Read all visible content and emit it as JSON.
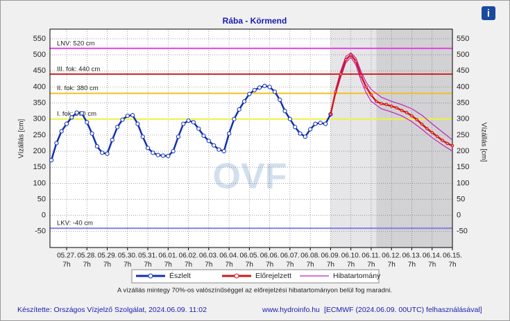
{
  "chart_data": {
    "type": "hydrograph",
    "title": "Rába - Körmend",
    "y_label": "Vízállás [cm]",
    "y2_label": "Vízállás [cm]",
    "watermark": "OVF",
    "info_icon": "i",
    "xlim": [
      -0.82,
      19
    ],
    "ylim": [
      -100,
      580
    ],
    "yticks": [
      -50,
      0,
      50,
      100,
      150,
      200,
      250,
      300,
      350,
      400,
      450,
      500,
      550
    ],
    "xticks": [
      {
        "value": 0,
        "label": "05.27.",
        "hour": "7h"
      },
      {
        "value": 1,
        "label": "05.28.",
        "hour": "7h"
      },
      {
        "value": 2,
        "label": "05.29.",
        "hour": "7h"
      },
      {
        "value": 3,
        "label": "05.30.",
        "hour": "7h"
      },
      {
        "value": 4,
        "label": "05.31.",
        "hour": "7h"
      },
      {
        "value": 5,
        "label": "06.01.",
        "hour": "7h"
      },
      {
        "value": 6,
        "label": "06.02.",
        "hour": "7h"
      },
      {
        "value": 7,
        "label": "06.03.",
        "hour": "7h"
      },
      {
        "value": 8,
        "label": "06.04.",
        "hour": "7h"
      },
      {
        "value": 9,
        "label": "06.05.",
        "hour": "7h"
      },
      {
        "value": 10,
        "label": "06.06.",
        "hour": "7h"
      },
      {
        "value": 11,
        "label": "06.07.",
        "hour": "7h"
      },
      {
        "value": 12,
        "label": "06.08.",
        "hour": "7h"
      },
      {
        "value": 13,
        "label": "06.09.",
        "hour": "7h"
      },
      {
        "value": 14,
        "label": "06.10.",
        "hour": "7h"
      },
      {
        "value": 15,
        "label": "06.11.",
        "hour": "7h"
      },
      {
        "value": 16,
        "label": "06.12.",
        "hour": "7h"
      },
      {
        "value": 17,
        "label": "06.13.",
        "hour": "7h"
      },
      {
        "value": 18,
        "label": "06.14.",
        "hour": "7h"
      },
      {
        "value": 19,
        "label": "06.15.",
        "hour": "7h"
      }
    ],
    "grid": true,
    "shaded_regions": [
      {
        "from": 13,
        "to": 15.25,
        "color": "#e6e6e8"
      },
      {
        "from": 15.25,
        "to": 19,
        "color": "#d2d2d4"
      }
    ],
    "thresholds": [
      {
        "label": "LNV: 520 cm",
        "value": 520,
        "color": "#e040e0"
      },
      {
        "label": "III. fok: 440 cm",
        "value": 440,
        "color": "#d02020"
      },
      {
        "label": "II. fok: 380 cm",
        "value": 380,
        "color": "#f0c020"
      },
      {
        "label": "I. fok: 300 cm",
        "value": 300,
        "color": "#f0f040"
      },
      {
        "label": "LKV: -40 cm",
        "value": -40,
        "color": "#8080e0"
      }
    ],
    "series": [
      {
        "name": "Észlelt",
        "color": "#1030b0",
        "x": [
          -0.75,
          -0.5,
          -0.25,
          0,
          0.25,
          0.5,
          0.75,
          1,
          1.25,
          1.5,
          1.75,
          2,
          2.25,
          2.5,
          2.75,
          3,
          3.25,
          3.5,
          3.75,
          4,
          4.25,
          4.5,
          4.75,
          5,
          5.25,
          5.5,
          5.75,
          6,
          6.25,
          6.5,
          6.75,
          7,
          7.25,
          7.5,
          7.75,
          8,
          8.25,
          8.5,
          8.75,
          9,
          9.25,
          9.5,
          9.75,
          10,
          10.25,
          10.5,
          10.75,
          11,
          11.25,
          11.5,
          11.75,
          12,
          12.25,
          12.5,
          12.75,
          13
        ],
        "values": [
          172,
          225,
          262,
          285,
          305,
          320,
          318,
          290,
          255,
          215,
          195,
          192,
          235,
          275,
          298,
          310,
          312,
          285,
          245,
          210,
          195,
          188,
          186,
          185,
          200,
          245,
          285,
          295,
          290,
          270,
          248,
          232,
          218,
          205,
          200,
          255,
          300,
          330,
          355,
          378,
          390,
          398,
          403,
          400,
          385,
          360,
          325,
          300,
          275,
          255,
          245,
          268,
          285,
          288,
          285,
          315
        ]
      },
      {
        "name": "Előrejelzett",
        "color": "#d01818",
        "x": [
          13,
          13.25,
          13.5,
          13.75,
          14,
          14.25,
          14.5,
          14.75,
          15,
          15.25,
          15.5,
          15.75,
          16,
          16.25,
          16.5,
          16.75,
          17,
          17.25,
          17.5,
          17.75,
          18,
          18.25,
          18.5,
          18.75,
          19
        ],
        "values": [
          315,
          385,
          440,
          485,
          500,
          480,
          435,
          400,
          375,
          355,
          348,
          345,
          340,
          335,
          327,
          320,
          310,
          298,
          284,
          270,
          258,
          246,
          234,
          224,
          217
        ]
      }
    ],
    "error_band": {
      "name": "Hibatartomány",
      "color": "#c020c0",
      "x": [
        13.25,
        13.5,
        13.75,
        14,
        14.25,
        14.5,
        14.75,
        15,
        15.5,
        16,
        16.5,
        17,
        17.5,
        18,
        18.5,
        19
      ],
      "upper": [
        392,
        450,
        495,
        506,
        490,
        448,
        415,
        392,
        368,
        355,
        345,
        332,
        312,
        285,
        260,
        235
      ],
      "lower": [
        378,
        430,
        475,
        492,
        468,
        420,
        382,
        355,
        332,
        322,
        310,
        292,
        268,
        242,
        220,
        200
      ]
    },
    "note": "A vízállás mintegy 70%-os valószínűséggel az előrejelzési hibatartományon belül fog maradni.",
    "footer_left": "Készítette: Országos Vízjelző Szolgálat, 2024.06.09. 11:02",
    "footer_center": "www.hydroinfo.hu",
    "footer_right": "[ECMWF (2024.06.09. 00UTC) felhasználásával]"
  }
}
